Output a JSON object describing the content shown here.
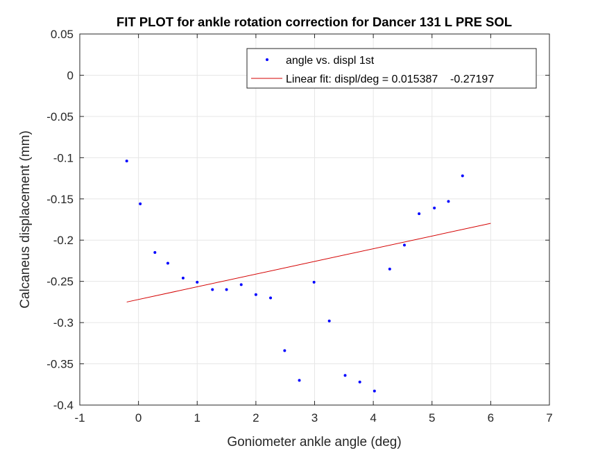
{
  "chart_data": {
    "type": "scatter",
    "title": "FIT PLOT for ankle rotation correction for Dancer 131 L PRE SOL",
    "xlabel": "Goniometer ankle angle (deg)",
    "ylabel": "Calcaneus displacement (mm)",
    "xlim": [
      -1,
      7
    ],
    "ylim": [
      -0.4,
      0.05
    ],
    "x_ticks": [
      -1,
      0,
      1,
      2,
      3,
      4,
      5,
      6,
      7
    ],
    "x_tick_labels": [
      "-1",
      "0",
      "1",
      "2",
      "3",
      "4",
      "5",
      "6",
      "7"
    ],
    "y_ticks": [
      0.05,
      0,
      -0.05,
      -0.1,
      -0.15,
      -0.2,
      -0.25,
      -0.3,
      -0.35,
      -0.4
    ],
    "y_tick_labels": [
      "0.05",
      "0",
      "-0.05",
      "-0.1",
      "-0.15",
      "-0.2",
      "-0.25",
      "-0.3",
      "-0.35",
      "-0.4"
    ],
    "grid": true,
    "legend_position": "top-right",
    "series": [
      {
        "name": "angle vs. displ 1st",
        "kind": "markers",
        "color": "#0000ff",
        "points": [
          [
            -0.2,
            -0.104
          ],
          [
            0.03,
            -0.156
          ],
          [
            0.28,
            -0.215
          ],
          [
            0.5,
            -0.228
          ],
          [
            0.76,
            -0.246
          ],
          [
            1.0,
            -0.251
          ],
          [
            1.26,
            -0.26
          ],
          [
            1.5,
            -0.26
          ],
          [
            1.75,
            -0.254
          ],
          [
            2.0,
            -0.266
          ],
          [
            2.25,
            -0.27
          ],
          [
            2.49,
            -0.334
          ],
          [
            2.74,
            -0.37
          ],
          [
            2.99,
            -0.251
          ],
          [
            3.25,
            -0.298
          ],
          [
            3.52,
            -0.364
          ],
          [
            3.77,
            -0.372
          ],
          [
            4.02,
            -0.383
          ],
          [
            4.28,
            -0.235
          ],
          [
            4.53,
            -0.206
          ],
          [
            4.78,
            -0.168
          ],
          [
            5.04,
            -0.161
          ],
          [
            5.28,
            -0.153
          ],
          [
            5.52,
            -0.122
          ]
        ]
      },
      {
        "name": "Linear fit: displ/deg = 0.015387    -0.27197",
        "kind": "line",
        "color": "#d40000",
        "points": [
          [
            -0.2,
            -0.27505
          ],
          [
            6.0,
            -0.17965
          ]
        ]
      }
    ]
  }
}
